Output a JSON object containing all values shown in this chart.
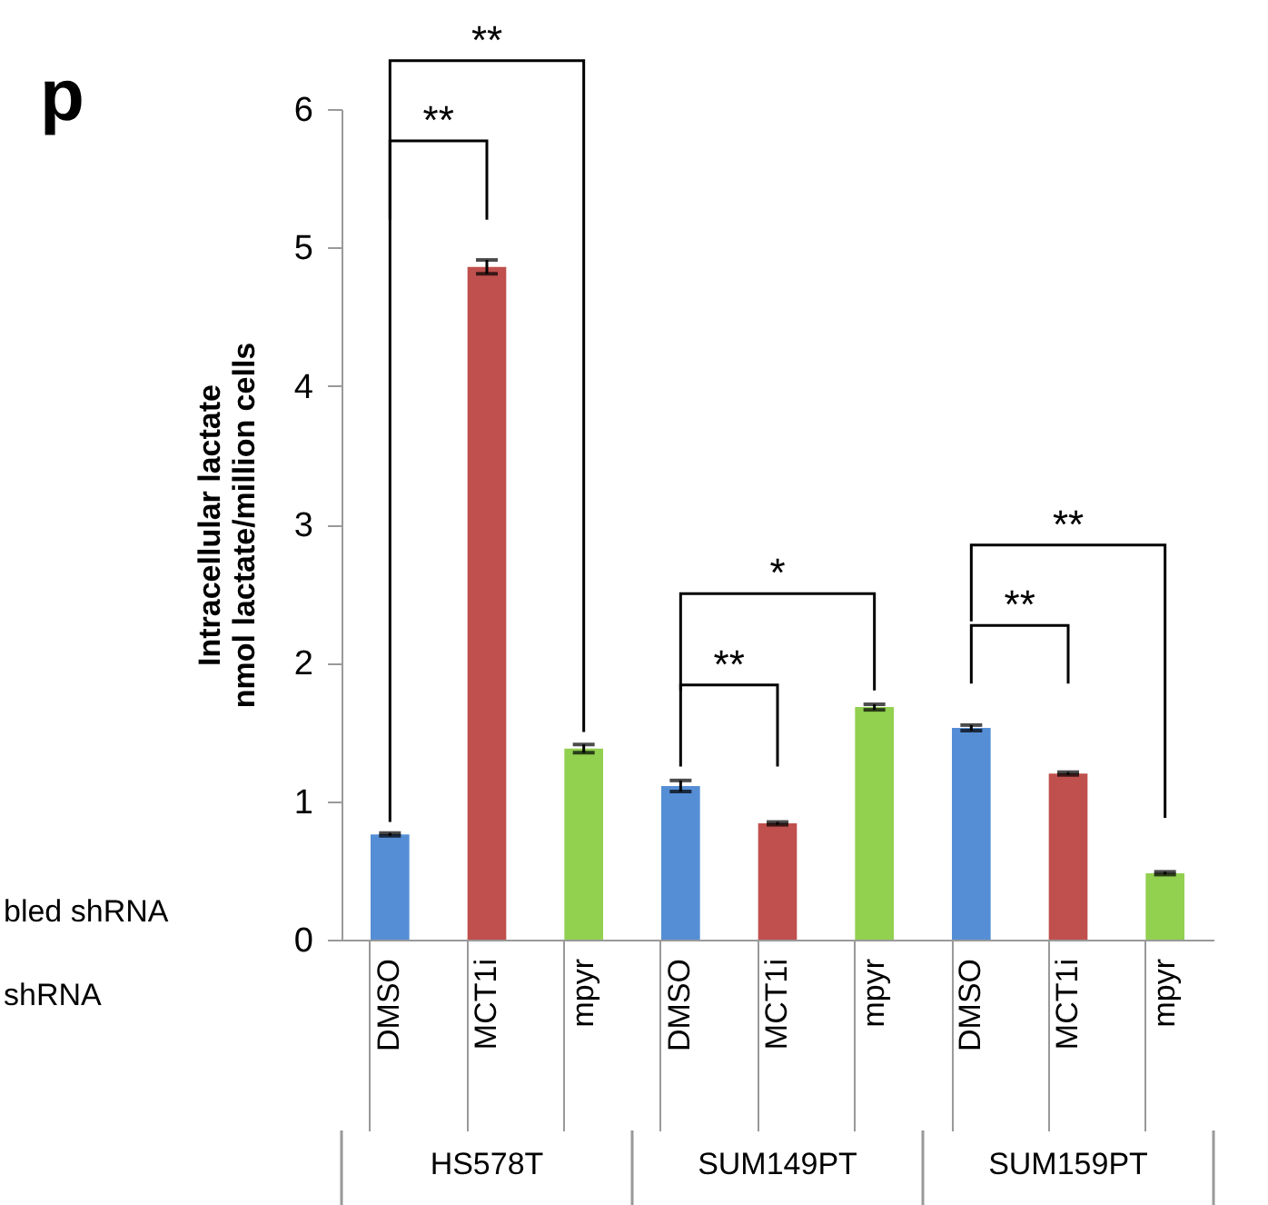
{
  "chart_data": {
    "type": "bar",
    "ylabel": "Intracellular  lactate\nnmol lactate/million cells",
    "categories": [
      "DMSO",
      "MCT1i",
      "mpyr",
      "DMSO",
      "MCT1i",
      "mpyr",
      "DMSO",
      "MCT1i",
      "mpyr"
    ],
    "values": [
      0.76,
      4.86,
      1.38,
      1.11,
      0.84,
      1.68,
      1.53,
      1.2,
      0.48
    ],
    "errors": [
      0.01,
      0.05,
      0.03,
      0.04,
      0.01,
      0.02,
      0.02,
      0.01,
      0.01
    ],
    "colors": [
      "#558ed5",
      "#c0504d",
      "#92d050",
      "#558ed5",
      "#c0504d",
      "#92d050",
      "#558ed5",
      "#c0504d",
      "#92d050"
    ],
    "ylim": [
      0,
      6
    ],
    "yticks": [
      0,
      1,
      2,
      3,
      4,
      5,
      6
    ],
    "annotations": [
      "p",
      "bled shRNA",
      "shRNA",
      "**",
      "**",
      "**",
      "*",
      "**",
      "**",
      "HS578T",
      "SUM149PT",
      "SUM159PT"
    ]
  }
}
